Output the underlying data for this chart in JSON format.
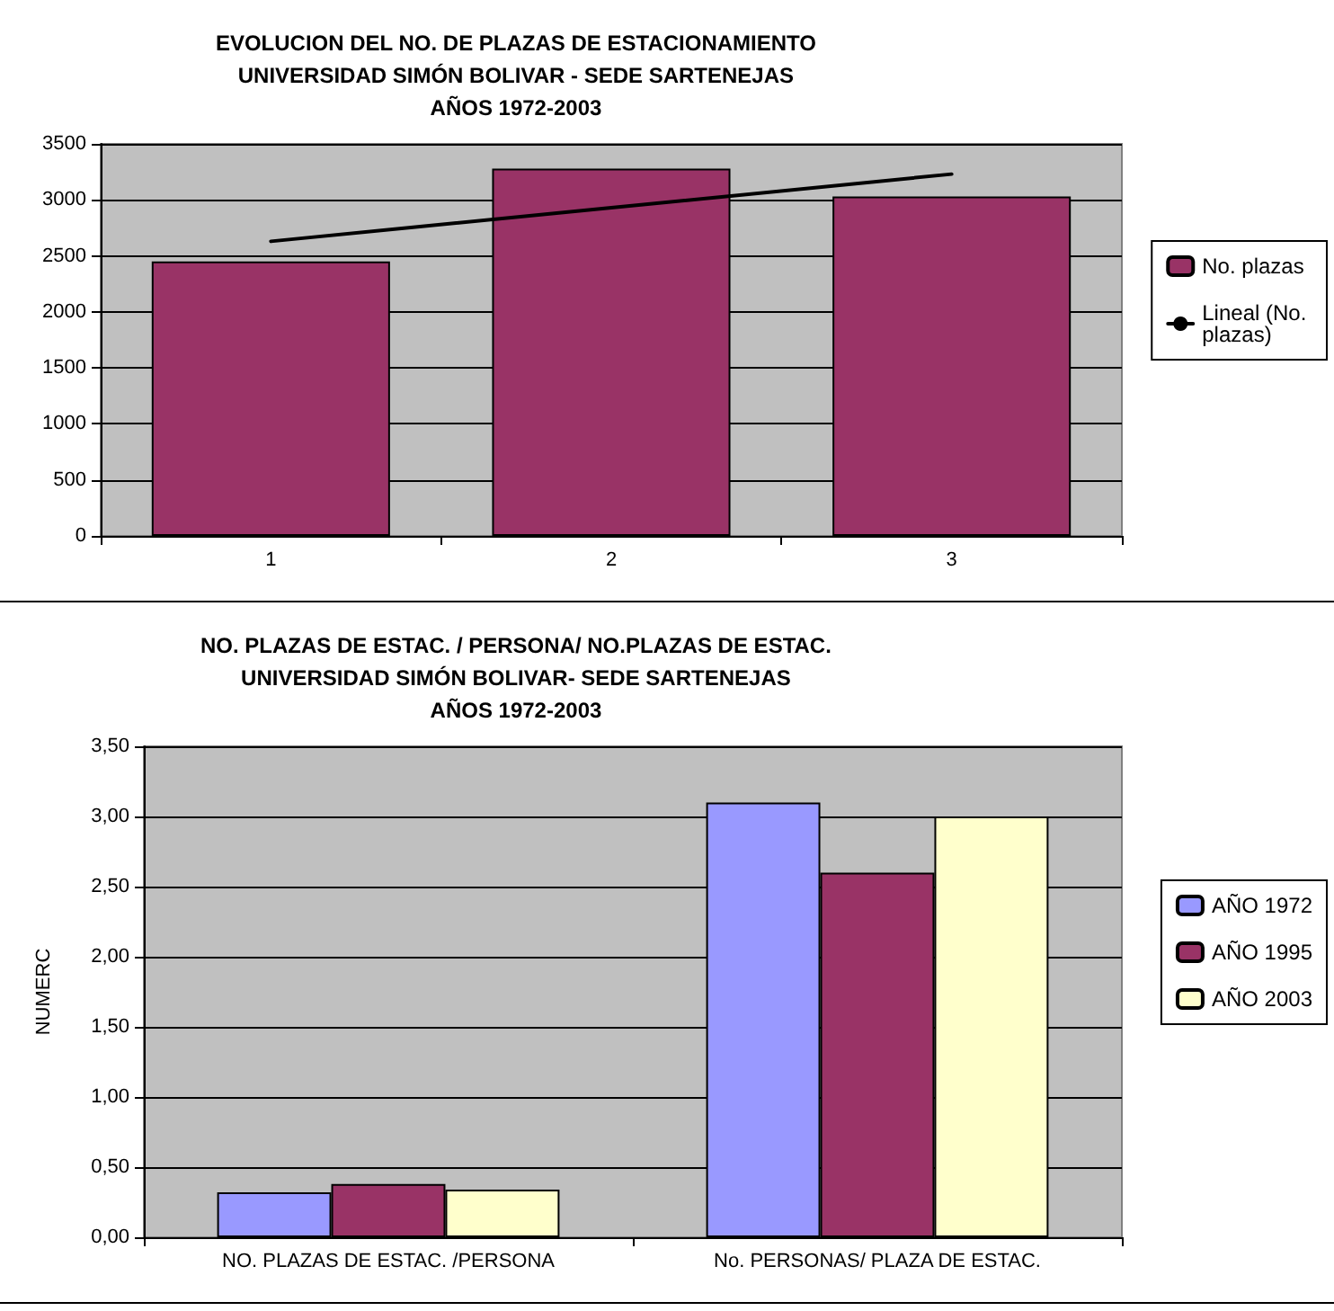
{
  "chart_data": [
    {
      "type": "bar",
      "title": "EVOLUCION DEL NO. DE PLAZAS DE ESTACIONAMIENTO\nUNIVERSIDAD SIMÓN BOLIVAR - SEDE SARTENEJAS\nAÑOS 1972-2003",
      "categories": [
        "1",
        "2",
        "3"
      ],
      "series": [
        {
          "name": "No. plazas",
          "color": "#993366",
          "values": [
            2450,
            3280,
            3030
          ]
        },
        {
          "name": "Lineal (No. plazas)",
          "type": "line",
          "color": "#000000",
          "x": [
            "1",
            "2",
            "3"
          ],
          "values": [
            2630,
            2930,
            3230
          ]
        }
      ],
      "ylim": [
        0,
        3500
      ],
      "yticks": [
        0,
        500,
        1000,
        1500,
        2000,
        2500,
        3000,
        3500
      ],
      "grid": "y",
      "legend": "right",
      "marker": "none"
    },
    {
      "type": "bar",
      "title": "NO. PLAZAS DE ESTAC. / PERSONA/ NO.PLAZAS DE ESTAC.\nUNIVERSIDAD SIMÓN BOLIVAR- SEDE SARTENEJAS\nAÑOS 1972-2003",
      "ylabel": "NUMERC",
      "categories": [
        "NO. PLAZAS DE ESTAC. /PERSONA",
        "No. PERSONAS/ PLAZA DE ESTAC."
      ],
      "series": [
        {
          "name": "AÑO 1972",
          "color": "#9999ff",
          "values": [
            0.32,
            3.1
          ]
        },
        {
          "name": "AÑO 1995",
          "color": "#993366",
          "values": [
            0.38,
            2.6
          ]
        },
        {
          "name": "AÑO 2003",
          "color": "#ffffcc",
          "values": [
            0.34,
            3.0
          ]
        }
      ],
      "ylim": [
        0,
        3.5
      ],
      "yticks": [
        {
          "value": 0,
          "label": "0,00"
        },
        {
          "value": 0.5,
          "label": "0,50"
        },
        {
          "value": 1,
          "label": "1,00"
        },
        {
          "value": 1.5,
          "label": "1,50"
        },
        {
          "value": 2,
          "label": "2,00"
        },
        {
          "value": 2.5,
          "label": "2,50"
        },
        {
          "value": 3,
          "label": "3,00"
        },
        {
          "value": 3.5,
          "label": "3,50"
        }
      ],
      "grid": "y",
      "legend": "right"
    }
  ]
}
